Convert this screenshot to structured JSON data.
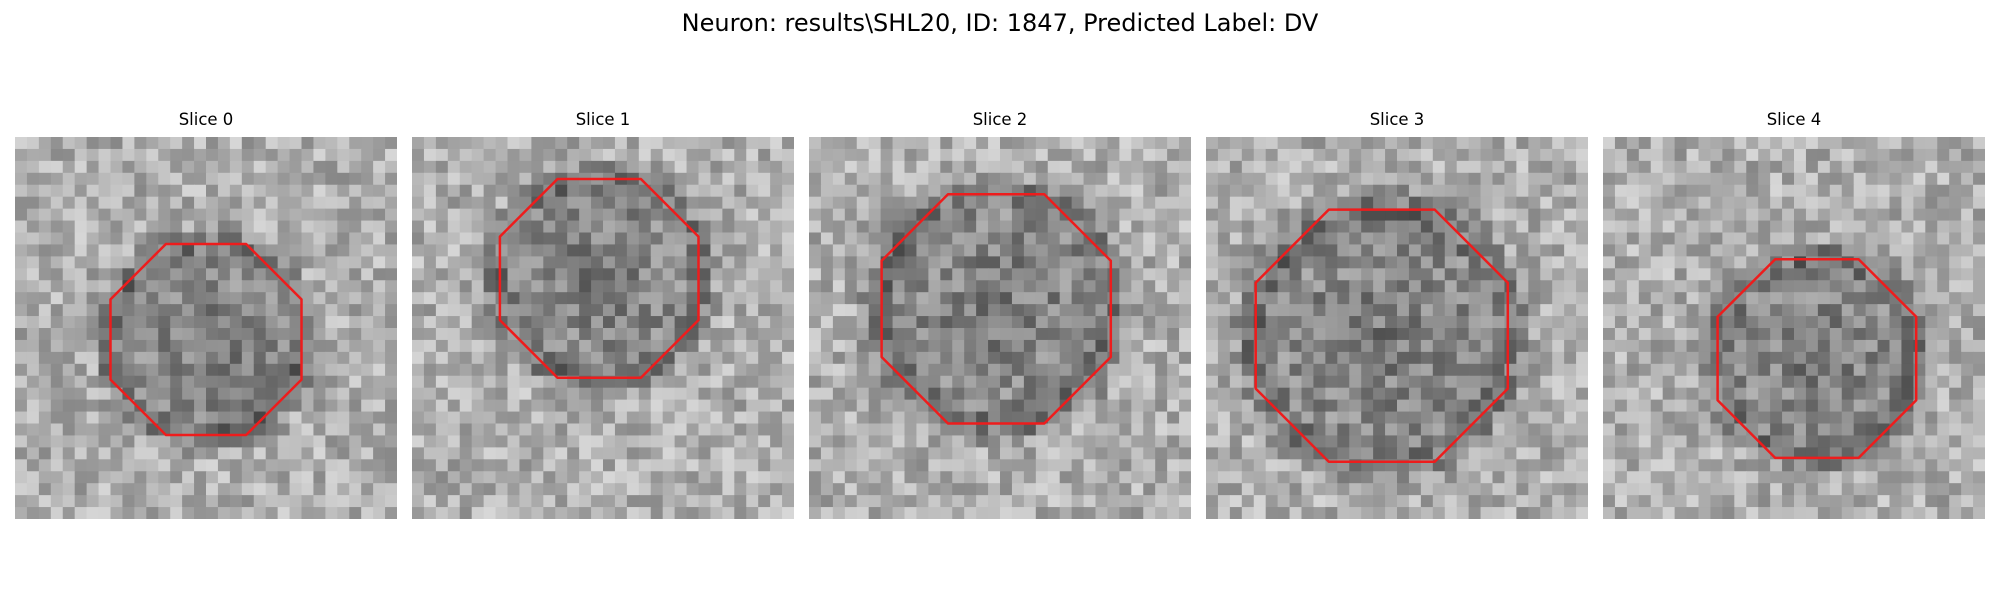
{
  "figure": {
    "title": "Neuron: results\\SHL20, ID: 1847, Predicted Label: DV"
  },
  "slices": [
    {
      "title": "Slice 0",
      "seed": 11,
      "contour_center": [
        0.5,
        0.53
      ],
      "contour_radius": 0.25
    },
    {
      "title": "Slice 1",
      "seed": 23,
      "contour_center": [
        0.49,
        0.37
      ],
      "contour_radius": 0.26
    },
    {
      "title": "Slice 2",
      "seed": 37,
      "contour_center": [
        0.49,
        0.45
      ],
      "contour_radius": 0.3
    },
    {
      "title": "Slice 3",
      "seed": 41,
      "contour_center": [
        0.46,
        0.52
      ],
      "contour_radius": 0.33
    },
    {
      "title": "Slice 4",
      "seed": 53,
      "contour_center": [
        0.56,
        0.58
      ],
      "contour_radius": 0.26
    }
  ],
  "colors": {
    "contour": "#ee1c1c",
    "background": "#ffffff"
  }
}
